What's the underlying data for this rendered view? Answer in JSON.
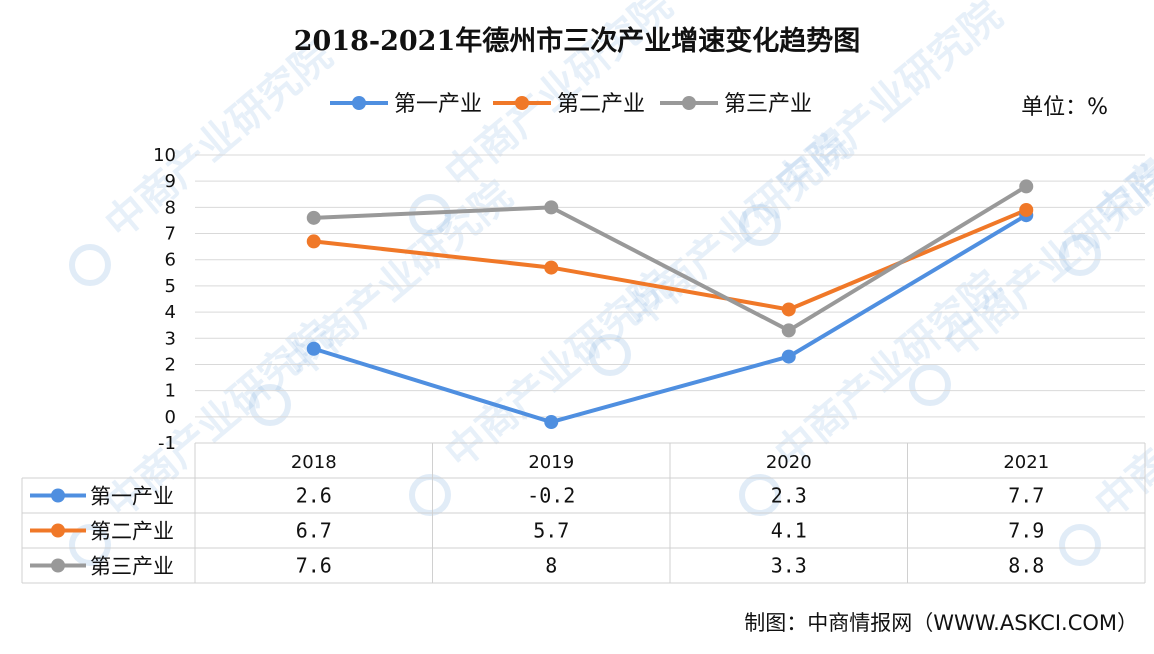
{
  "chart_data": {
    "type": "line",
    "title": "2018-2021年德州市三次产业增速变化趋势图",
    "unit": "单位：%",
    "categories": [
      "2018",
      "2019",
      "2020",
      "2021"
    ],
    "ylim": [
      -1,
      10
    ],
    "yticks": [
      -1,
      0,
      1,
      2,
      3,
      4,
      5,
      6,
      7,
      8,
      9,
      10
    ],
    "series": [
      {
        "name": "第一产业",
        "color": "#4f8fe0",
        "values": [
          2.6,
          -0.2,
          2.3,
          7.7
        ],
        "labels": [
          "2.6",
          "-0.2",
          "2.3",
          "7.7"
        ]
      },
      {
        "name": "第二产业",
        "color": "#f07828",
        "values": [
          6.7,
          5.7,
          4.1,
          7.9
        ],
        "labels": [
          "6.7",
          "5.7",
          "4.1",
          "7.9"
        ]
      },
      {
        "name": "第三产业",
        "color": "#999999",
        "values": [
          7.6,
          8,
          3.3,
          8.8
        ],
        "labels": [
          "7.6",
          "8",
          "3.3",
          "8.8"
        ]
      }
    ],
    "source": "制图：中商情报网（WWW.ASKCI.COM）",
    "watermark": "中商产业研究院"
  }
}
